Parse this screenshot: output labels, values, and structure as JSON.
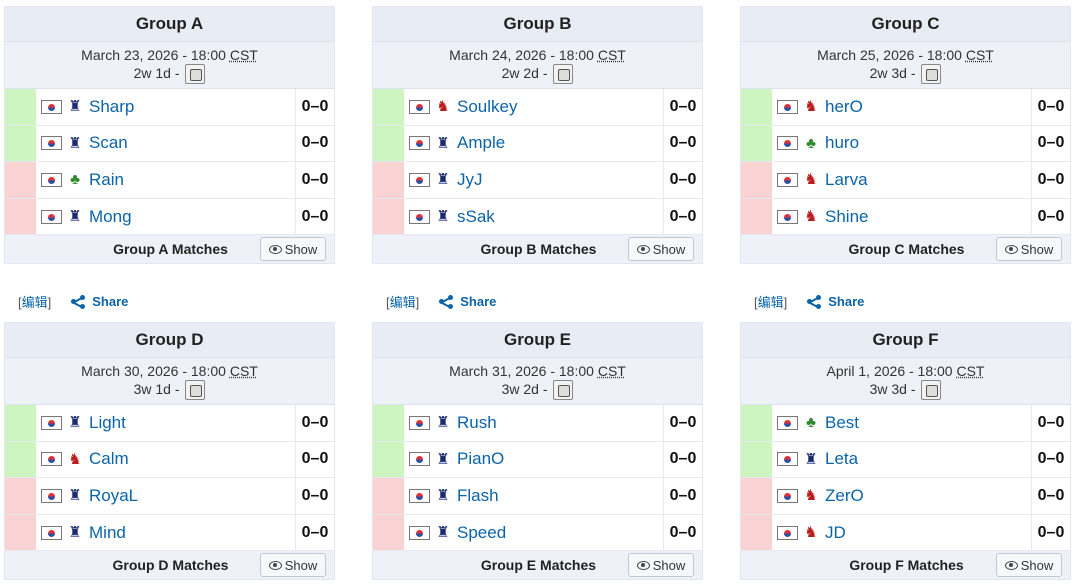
{
  "groups": [
    {
      "title": "Group A",
      "date": "March 23, 2026 - 18:00 ",
      "tz": "CST",
      "countdown": "2w 1d - ",
      "players": [
        {
          "name": "Sharp",
          "race": "T",
          "score": "0–0",
          "status": "up"
        },
        {
          "name": "Scan",
          "race": "T",
          "score": "0–0",
          "status": "up"
        },
        {
          "name": "Rain",
          "race": "P",
          "score": "0–0",
          "status": "down"
        },
        {
          "name": "Mong",
          "race": "T",
          "score": "0–0",
          "status": "down"
        }
      ],
      "matches_label": "Group A Matches",
      "show_label": "Show"
    },
    {
      "title": "Group B",
      "date": "March 24, 2026 - 18:00 ",
      "tz": "CST",
      "countdown": "2w 2d - ",
      "players": [
        {
          "name": "Soulkey",
          "race": "Z",
          "score": "0–0",
          "status": "up"
        },
        {
          "name": "Ample",
          "race": "T",
          "score": "0–0",
          "status": "up"
        },
        {
          "name": "JyJ",
          "race": "T",
          "score": "0–0",
          "status": "down"
        },
        {
          "name": "sSak",
          "race": "T",
          "score": "0–0",
          "status": "down"
        }
      ],
      "matches_label": "Group B Matches",
      "show_label": "Show"
    },
    {
      "title": "Group C",
      "date": "March 25, 2026 - 18:00 ",
      "tz": "CST",
      "countdown": "2w 3d - ",
      "players": [
        {
          "name": "herO",
          "race": "Z",
          "score": "0–0",
          "status": "up"
        },
        {
          "name": "huro",
          "race": "P",
          "score": "0–0",
          "status": "up"
        },
        {
          "name": "Larva",
          "race": "Z",
          "score": "0–0",
          "status": "down"
        },
        {
          "name": "Shine",
          "race": "Z",
          "score": "0–0",
          "status": "down"
        }
      ],
      "matches_label": "Group C Matches",
      "show_label": "Show"
    },
    {
      "title": "Group D",
      "date": "March 30, 2026 - 18:00 ",
      "tz": "CST",
      "countdown": "3w 1d - ",
      "players": [
        {
          "name": "Light",
          "race": "T",
          "score": "0–0",
          "status": "up"
        },
        {
          "name": "Calm",
          "race": "Z",
          "score": "0–0",
          "status": "up"
        },
        {
          "name": "RoyaL",
          "race": "T",
          "score": "0–0",
          "status": "down"
        },
        {
          "name": "Mind",
          "race": "T",
          "score": "0–0",
          "status": "down"
        }
      ],
      "matches_label": "Group D Matches",
      "show_label": "Show"
    },
    {
      "title": "Group E",
      "date": "March 31, 2026 - 18:00 ",
      "tz": "CST",
      "countdown": "3w 2d - ",
      "players": [
        {
          "name": "Rush",
          "race": "T",
          "score": "0–0",
          "status": "up"
        },
        {
          "name": "PianO",
          "race": "T",
          "score": "0–0",
          "status": "up"
        },
        {
          "name": "Flash",
          "race": "T",
          "score": "0–0",
          "status": "down"
        },
        {
          "name": "Speed",
          "race": "T",
          "score": "0–0",
          "status": "down"
        }
      ],
      "matches_label": "Group E Matches",
      "show_label": "Show"
    },
    {
      "title": "Group F",
      "date": "April 1, 2026 - 18:00 ",
      "tz": "CST",
      "countdown": "3w 3d - ",
      "players": [
        {
          "name": "Best",
          "race": "P",
          "score": "0–0",
          "status": "up"
        },
        {
          "name": "Leta",
          "race": "T",
          "score": "0–0",
          "status": "up"
        },
        {
          "name": "ZerO",
          "race": "Z",
          "score": "0–0",
          "status": "down"
        },
        {
          "name": "JD",
          "race": "Z",
          "score": "0–0",
          "status": "down"
        }
      ],
      "matches_label": "Group F Matches",
      "show_label": "Show"
    }
  ],
  "tools": {
    "edit_open": "[",
    "edit_label": "编辑",
    "edit_close": "]",
    "share_label": "Share"
  },
  "icons": {
    "race_T": "terran-icon",
    "race_Z": "zerg-icon",
    "race_P": "protoss-icon",
    "flag": "south-korea-flag-icon",
    "calendar": "calendar-icon",
    "show": "eye-icon",
    "share": "share-icon"
  },
  "colors": {
    "advance": "#cdf5c0",
    "eliminate": "#f9d3d3",
    "link": "#0b64a8",
    "header_bg": "#e8edf5"
  }
}
